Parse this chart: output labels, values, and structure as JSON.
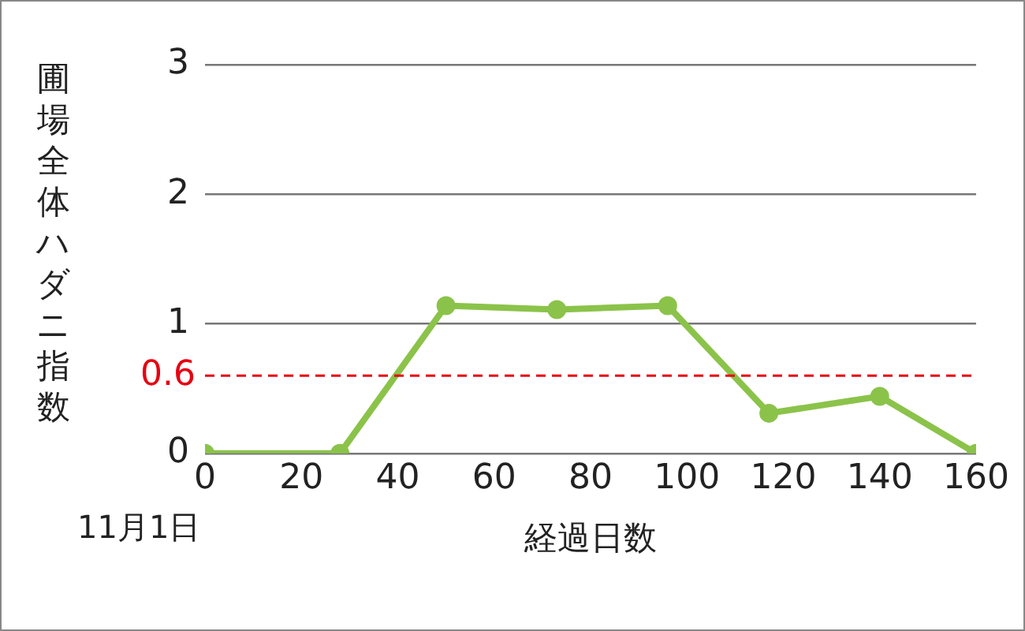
{
  "chart_data": {
    "type": "line",
    "xlabel": "経過日数",
    "ylabel": "圃場全体ハダニ指数",
    "annotations": [
      "11月1日"
    ],
    "x": [
      0,
      28,
      50,
      73,
      96,
      117,
      140,
      160
    ],
    "series": [
      {
        "color": "#8bc34a",
        "values": [
          0,
          0,
          1.14,
          1.11,
          1.14,
          0.31,
          0.44,
          0
        ]
      }
    ],
    "xlim": [
      0,
      160
    ],
    "xticks": [
      0,
      20,
      40,
      60,
      80,
      100,
      120,
      140,
      160
    ],
    "ylim": [
      0,
      3
    ],
    "yticks": [
      0,
      1,
      2,
      3
    ],
    "ref_lines": [
      {
        "axis": "y",
        "value": 0.6,
        "label": "0.6",
        "color": "#e60012",
        "line_style": "dashed"
      }
    ],
    "grid": "y",
    "legend": false,
    "marker": "circle",
    "line_style": "solid"
  }
}
